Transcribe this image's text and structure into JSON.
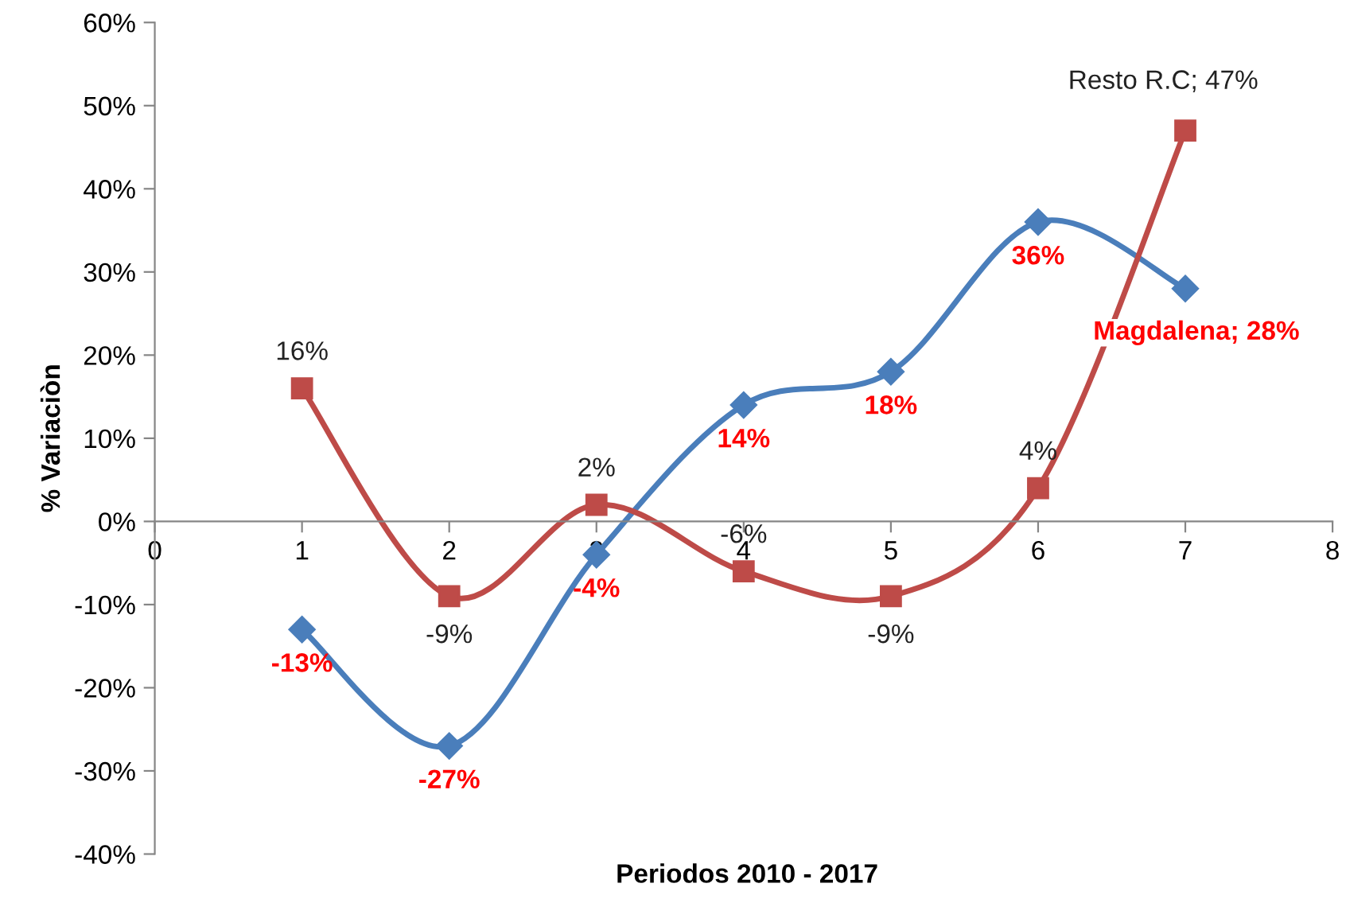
{
  "chart_data": {
    "type": "line",
    "xlabel": "Periodos 2010 - 2017",
    "ylabel": "% Variaciòn",
    "x": [
      1,
      2,
      3,
      4,
      5,
      6,
      7
    ],
    "series": [
      {
        "color": "#4a7ebb",
        "marker": "diamond",
        "values": [
          -13,
          -27,
          -4,
          14,
          18,
          36,
          28
        ],
        "value_labels": [
          "-13%",
          "-27%",
          "-4%",
          "14%",
          "18%",
          "36%",
          "Magdalena; 28%"
        ]
      },
      {
        "color": "#be4b48",
        "marker": "square",
        "values": [
          16,
          -9,
          2,
          -6,
          -9,
          4,
          47
        ],
        "value_labels": [
          "16%",
          "-9%",
          "2%",
          "-6%",
          "-9%",
          "4%",
          "Resto R.C; 47%"
        ]
      }
    ],
    "xlim": [
      0,
      8
    ],
    "xticks": [
      0,
      1,
      2,
      3,
      4,
      5,
      6,
      7,
      8
    ],
    "ylim": [
      -40,
      60
    ],
    "yticks": [
      {
        "value": -40,
        "label": "-40%"
      },
      {
        "value": -30,
        "label": "-30%"
      },
      {
        "value": -20,
        "label": "-20%"
      },
      {
        "value": -10,
        "label": "-10%"
      },
      {
        "value": 0,
        "label": "0%"
      },
      {
        "value": 10,
        "label": "10%"
      },
      {
        "value": 20,
        "label": "20%"
      },
      {
        "value": 30,
        "label": "30%"
      },
      {
        "value": 40,
        "label": "40%"
      },
      {
        "value": 50,
        "label": "50%"
      },
      {
        "value": 60,
        "label": "60%"
      }
    ],
    "grid": false,
    "legend": false
  }
}
